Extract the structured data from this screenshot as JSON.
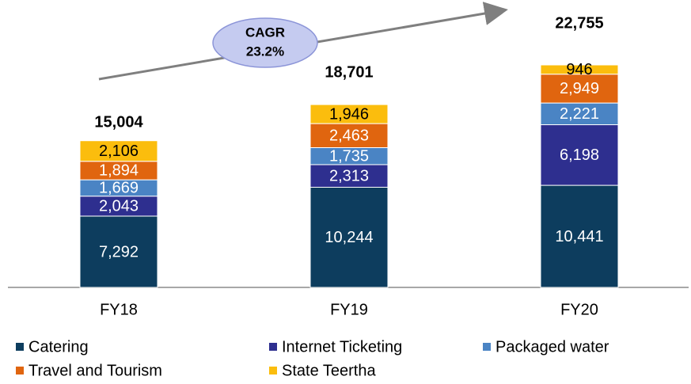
{
  "chart_data": {
    "type": "stacked_bar",
    "annotation": [
      "CAGR",
      "23.2%"
    ],
    "categories": [
      "FY18",
      "FY19",
      "FY20"
    ],
    "series": [
      {
        "name": "Catering",
        "color": "#0d3d5e",
        "values": [
          7292,
          10244,
          10441
        ],
        "value_labels": [
          "7,292",
          "10,244",
          "10,441"
        ]
      },
      {
        "name": "Internet Ticketing",
        "color": "#2e2f8f",
        "values": [
          2043,
          2313,
          6198
        ],
        "value_labels": [
          "2,043",
          "2,313",
          "6,198"
        ]
      },
      {
        "name": "Packaged water",
        "color": "#4a84c4",
        "values": [
          1669,
          1735,
          2221
        ],
        "value_labels": [
          "1,669",
          "1,735",
          "2,221"
        ]
      },
      {
        "name": "Travel and Tourism",
        "color": "#e0650f",
        "values": [
          1894,
          2463,
          2949
        ],
        "value_labels": [
          "1,894",
          "2,463",
          "2,949"
        ]
      },
      {
        "name": "State Teertha",
        "color": "#fbbd0d",
        "values": [
          2106,
          1946,
          946
        ],
        "value_labels": [
          "2,106",
          "1,946",
          "946"
        ]
      }
    ],
    "totals": [
      15004,
      18701,
      22755
    ],
    "total_labels": [
      "15,004",
      "18,701",
      "22,755"
    ]
  }
}
